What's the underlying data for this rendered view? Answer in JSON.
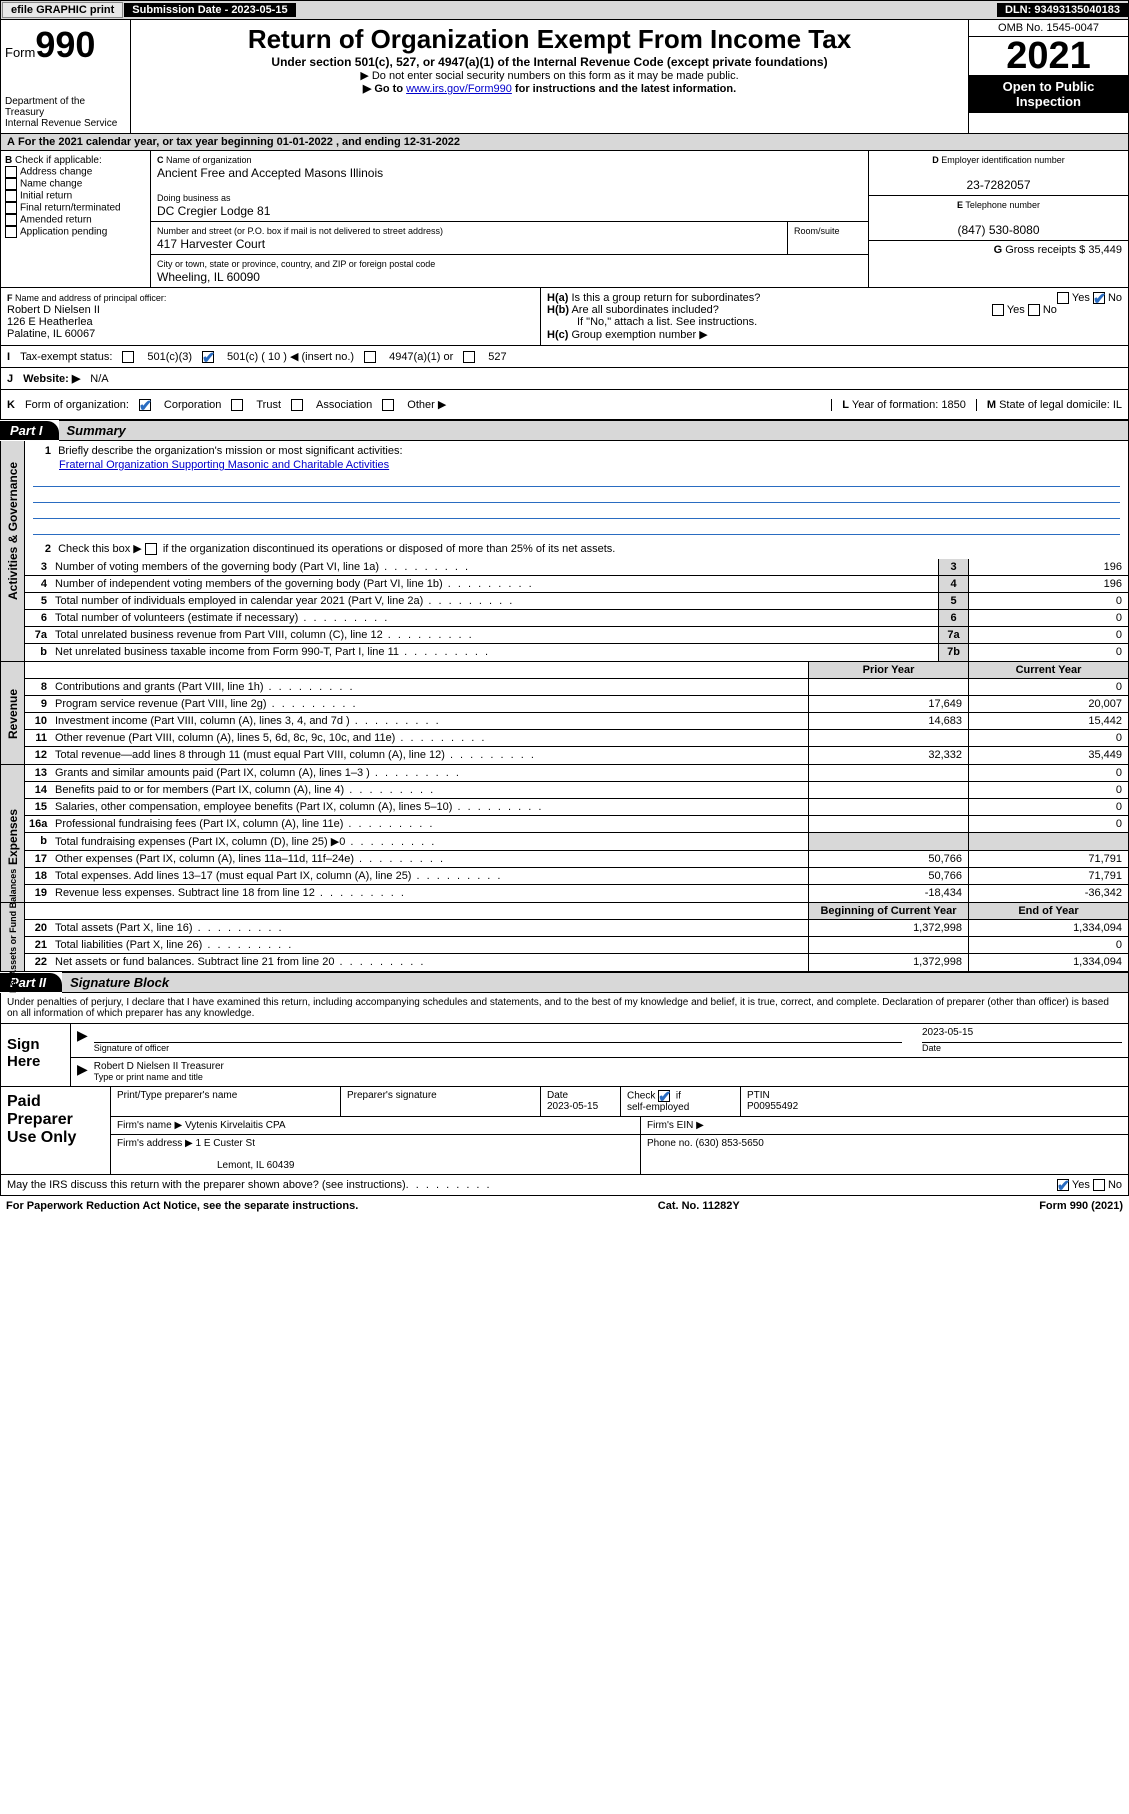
{
  "topbar": {
    "efile": "efile GRAPHIC print",
    "sub_label": "Submission Date - 2023-05-15",
    "dln": "DLN: 93493135040183"
  },
  "header": {
    "form_prefix": "Form",
    "form_num": "990",
    "dept": "Department of the Treasury",
    "irs": "Internal Revenue Service",
    "title": "Return of Organization Exempt From Income Tax",
    "subtitle": "Under section 501(c), 527, or 4947(a)(1) of the Internal Revenue Code (except private foundations)",
    "note1": "▶ Do not enter social security numbers on this form as it may be made public.",
    "note2_pre": "▶ Go to ",
    "note2_link": "www.irs.gov/Form990",
    "note2_post": " for instructions and the latest information.",
    "omb": "OMB No. 1545-0047",
    "year": "2021",
    "open": "Open to Public Inspection"
  },
  "periodA": "For the 2021 calendar year, or tax year beginning 01-01-2022   , and ending 12-31-2022",
  "B": {
    "hdr": "Check if applicable:",
    "items": [
      "Address change",
      "Name change",
      "Initial return",
      "Final return/terminated",
      "Amended return",
      "Application pending"
    ]
  },
  "C": {
    "name_lbl": "Name of organization",
    "name": "Ancient Free and Accepted Masons Illinois",
    "dba_lbl": "Doing business as",
    "dba": "DC Cregier Lodge 81",
    "street_lbl": "Number and street (or P.O. box if mail is not delivered to street address)",
    "room_lbl": "Room/suite",
    "street": "417 Harvester Court",
    "city_lbl": "City or town, state or province, country, and ZIP or foreign postal code",
    "city": "Wheeling, IL  60090"
  },
  "D": {
    "lbl": "Employer identification number",
    "val": "23-7282057"
  },
  "E": {
    "lbl": "Telephone number",
    "val": "(847) 530-8080"
  },
  "G": {
    "lbl": "Gross receipts $",
    "val": "35,449"
  },
  "F": {
    "lbl": "Name and address of principal officer:",
    "name": "Robert D Nielsen II",
    "addr1": "126 E Heatherlea",
    "addr2": "Palatine, IL  60067"
  },
  "H": {
    "a": "Is this a group return for subordinates?",
    "b": "Are all subordinates included?",
    "c_note": "If \"No,\" attach a list. See instructions.",
    "c": "Group exemption number ▶"
  },
  "I": {
    "lbl": "Tax-exempt status:",
    "o1": "501(c)(3)",
    "o2": "501(c) ( 10 ) ◀ (insert no.)",
    "o3": "4947(a)(1) or",
    "o4": "527"
  },
  "J": {
    "lbl": "Website: ▶",
    "val": "N/A"
  },
  "K": {
    "lbl": "Form of organization:",
    "o1": "Corporation",
    "o2": "Trust",
    "o3": "Association",
    "o4": "Other ▶"
  },
  "L": {
    "lbl": "Year of formation:",
    "val": "1850"
  },
  "M": {
    "lbl": "State of legal domicile:",
    "val": "IL"
  },
  "part1": {
    "tab": "Part I",
    "title": "Summary",
    "q1": "Briefly describe the organization's mission or most significant activities:",
    "mission": "Fraternal Organization Supporting Masonic and Charitable Activities",
    "q2": "Check this box ▶         if the organization discontinued its operations or disposed of more than 25% of its net assets.",
    "lines_gov": [
      {
        "n": "3",
        "t": "Number of voting members of the governing body (Part VI, line 1a)",
        "box": "3",
        "v": "196"
      },
      {
        "n": "4",
        "t": "Number of independent voting members of the governing body (Part VI, line 1b)",
        "box": "4",
        "v": "196"
      },
      {
        "n": "5",
        "t": "Total number of individuals employed in calendar year 2021 (Part V, line 2a)",
        "box": "5",
        "v": "0"
      },
      {
        "n": "6",
        "t": "Total number of volunteers (estimate if necessary)",
        "box": "6",
        "v": "0"
      },
      {
        "n": "7a",
        "t": "Total unrelated business revenue from Part VIII, column (C), line 12",
        "box": "7a",
        "v": "0"
      },
      {
        "n": "b",
        "t": "Net unrelated business taxable income from Form 990-T, Part I, line 11",
        "box": "7b",
        "v": "0"
      }
    ],
    "col_prior": "Prior Year",
    "col_curr": "Current Year",
    "lines_rev": [
      {
        "n": "8",
        "t": "Contributions and grants (Part VIII, line 1h)",
        "p": "",
        "c": "0"
      },
      {
        "n": "9",
        "t": "Program service revenue (Part VIII, line 2g)",
        "p": "17,649",
        "c": "20,007"
      },
      {
        "n": "10",
        "t": "Investment income (Part VIII, column (A), lines 3, 4, and 7d )",
        "p": "14,683",
        "c": "15,442"
      },
      {
        "n": "11",
        "t": "Other revenue (Part VIII, column (A), lines 5, 6d, 8c, 9c, 10c, and 11e)",
        "p": "",
        "c": "0"
      },
      {
        "n": "12",
        "t": "Total revenue—add lines 8 through 11 (must equal Part VIII, column (A), line 12)",
        "p": "32,332",
        "c": "35,449"
      }
    ],
    "lines_exp": [
      {
        "n": "13",
        "t": "Grants and similar amounts paid (Part IX, column (A), lines 1–3 )",
        "p": "",
        "c": "0"
      },
      {
        "n": "14",
        "t": "Benefits paid to or for members (Part IX, column (A), line 4)",
        "p": "",
        "c": "0"
      },
      {
        "n": "15",
        "t": "Salaries, other compensation, employee benefits (Part IX, column (A), lines 5–10)",
        "p": "",
        "c": "0"
      },
      {
        "n": "16a",
        "t": "Professional fundraising fees (Part IX, column (A), line 11e)",
        "p": "",
        "c": "0"
      },
      {
        "n": "b",
        "t": "Total fundraising expenses (Part IX, column (D), line 25) ▶0",
        "p": "GRAY",
        "c": "GRAY"
      },
      {
        "n": "17",
        "t": "Other expenses (Part IX, column (A), lines 11a–11d, 11f–24e)",
        "p": "50,766",
        "c": "71,791"
      },
      {
        "n": "18",
        "t": "Total expenses. Add lines 13–17 (must equal Part IX, column (A), line 25)",
        "p": "50,766",
        "c": "71,791"
      },
      {
        "n": "19",
        "t": "Revenue less expenses. Subtract line 18 from line 12",
        "p": "-18,434",
        "c": "-36,342"
      }
    ],
    "col_beg": "Beginning of Current Year",
    "col_end": "End of Year",
    "lines_na": [
      {
        "n": "20",
        "t": "Total assets (Part X, line 16)",
        "p": "1,372,998",
        "c": "1,334,094"
      },
      {
        "n": "21",
        "t": "Total liabilities (Part X, line 26)",
        "p": "",
        "c": "0"
      },
      {
        "n": "22",
        "t": "Net assets or fund balances. Subtract line 21 from line 20",
        "p": "1,372,998",
        "c": "1,334,094"
      }
    ]
  },
  "part2": {
    "tab": "Part II",
    "title": "Signature Block",
    "decl": "Under penalties of perjury, I declare that I have examined this return, including accompanying schedules and statements, and to the best of my knowledge and belief, it is true, correct, and complete. Declaration of preparer (other than officer) is based on all information of which preparer has any knowledge.",
    "sign_here": "Sign Here",
    "sig_officer": "Signature of officer",
    "date": "Date",
    "sig_date": "2023-05-15",
    "officer_name": "Robert D Nielsen II Treasurer",
    "name_title": "Type or print name and title",
    "prep_lbl": "Paid Preparer Use Only",
    "prep_name_lbl": "Print/Type preparer's name",
    "prep_sig_lbl": "Preparer's signature",
    "prep_date_lbl": "Date",
    "prep_date": "2023-05-15",
    "check_if": "Check          if self-employed",
    "ptin_lbl": "PTIN",
    "ptin": "P00955492",
    "firm_name_lbl": "Firm's name      ▶",
    "firm_name": "Vytenis Kirvelaitis CPA",
    "firm_ein": "Firm's EIN ▶",
    "firm_addr_lbl": "Firm's address ▶",
    "firm_addr1": "1 E Custer St",
    "firm_addr2": "Lemont, IL  60439",
    "phone_lbl": "Phone no.",
    "phone": "(630) 853-5650",
    "discuss": "May the IRS discuss this return with the preparer shown above? (see instructions)",
    "paperwork": "For Paperwork Reduction Act Notice, see the separate instructions.",
    "cat": "Cat. No. 11282Y",
    "formfoot": "Form 990 (2021)"
  },
  "vtabs": {
    "gov": "Activities & Governance",
    "rev": "Revenue",
    "exp": "Expenses",
    "na": "Net Assets or Fund Balances"
  }
}
